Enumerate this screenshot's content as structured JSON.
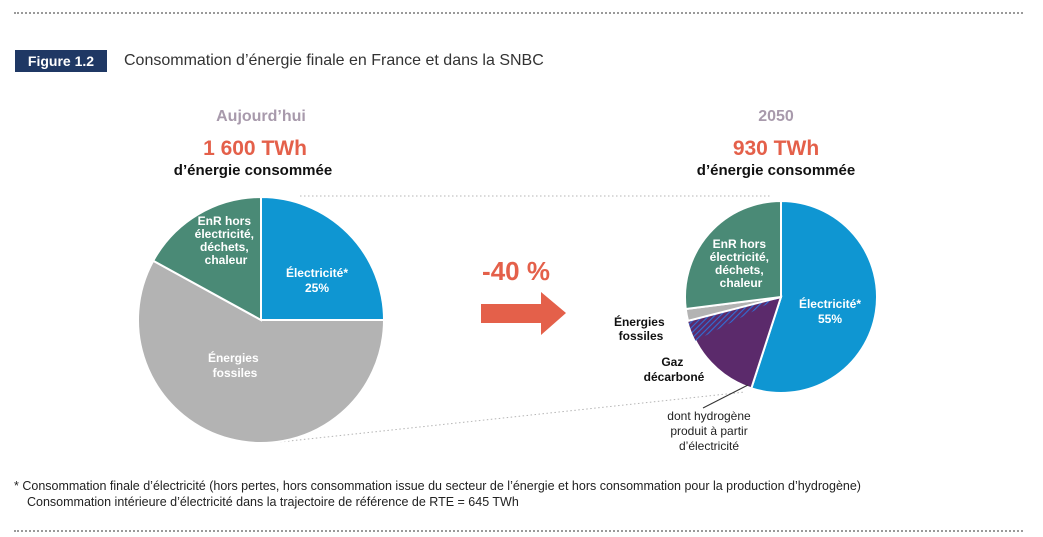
{
  "figure": {
    "badge": "Figure 1.2",
    "title": "Consommation d’énergie finale en France et dans la SNBC"
  },
  "arrow": {
    "label": "-40 %",
    "color": "#e4604a"
  },
  "annotation": {
    "lines": [
      "dont hydrogène",
      "produit à partir",
      "d’électricité"
    ]
  },
  "footnotes": [
    "* Consommation finale d’électricité (hors pertes, hors consommation issue du secteur de l’énergie et hors consommation pour la production d’hydrogène)",
    "Consommation intérieure d’électricité dans la trajectoire de référence de RTE = 645 TWh"
  ],
  "chart_data": [
    {
      "type": "pie",
      "title": "Aujourd’hui",
      "total": "1 600 TWh",
      "subtitle": "d’énergie consommée",
      "slices": [
        {
          "label": "Électricité*",
          "value_label": "25%",
          "value": 25,
          "color": "#0f96d2"
        },
        {
          "label": "Énergies fossiles",
          "value_label": "",
          "value": 58,
          "color": "#b3b3b3"
        },
        {
          "label": "EnR hors électricité, déchets, chaleur",
          "value_label": "",
          "value": 17,
          "color": "#4a8a76"
        }
      ]
    },
    {
      "type": "pie",
      "title": "2050",
      "total": "930 TWh",
      "subtitle": "d’énergie consommée",
      "slices": [
        {
          "label": "Électricité*",
          "value_label": "55%",
          "value": 55,
          "color": "#0f96d2"
        },
        {
          "label": "Gaz décarboné",
          "value_label": "",
          "value": 16,
          "color": "#5b2a6b",
          "note": "dont hydrogène produit à partir d’électricité"
        },
        {
          "label": "Énergies fossiles",
          "value_label": "",
          "value": 2,
          "color": "#b3b3b3"
        },
        {
          "label": "EnR hors électricité, déchets, chaleur",
          "value_label": "",
          "value": 27,
          "color": "#4a8a76"
        }
      ]
    }
  ]
}
